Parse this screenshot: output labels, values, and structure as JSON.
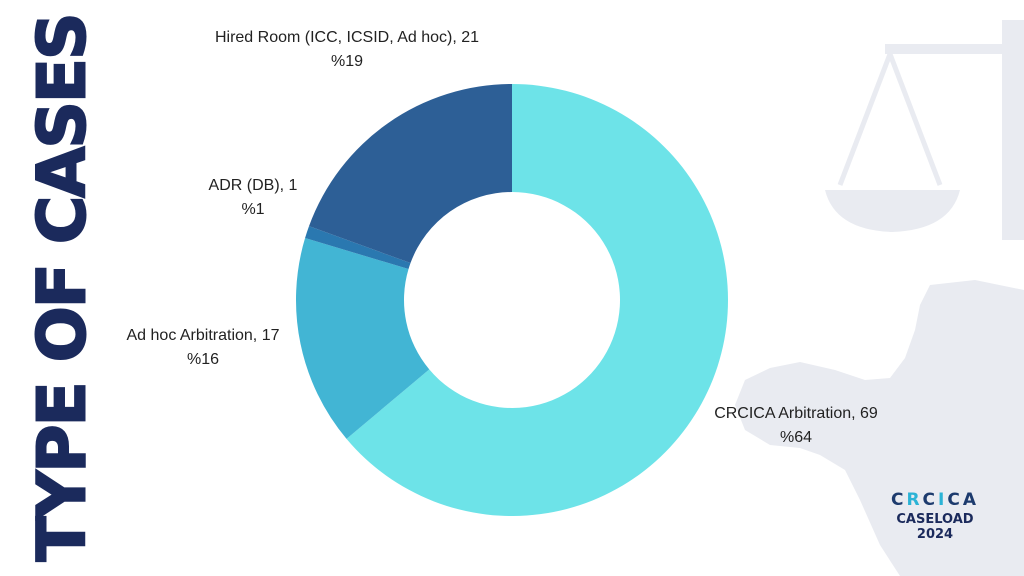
{
  "side_title": "TYPE OF CASES",
  "colors": {
    "background": "#ffffff",
    "title": "#1b2a5c",
    "decor": "#e9ebf1",
    "brand_dark": "#1d3b6e",
    "brand_light": "#2bb3d6"
  },
  "brand": {
    "logo_parts": [
      "C",
      "R",
      "C",
      "I",
      "C",
      "A"
    ],
    "line1": "CASELOAD",
    "line2": "2024"
  },
  "decor_icons": [
    "scales-of-justice-icon",
    "africa-map-icon"
  ],
  "chart_data": {
    "type": "pie",
    "donut": true,
    "title": "",
    "slices": [
      {
        "label": "CRCICA Arbitration, 69",
        "value": 69,
        "percent": "%64",
        "color": "#6de3e8"
      },
      {
        "label": "Ad hoc Arbitration, 17",
        "value": 17,
        "percent": "%16",
        "color": "#42b5d4"
      },
      {
        "label": "ADR (DB), 1",
        "value": 1,
        "percent": "%1",
        "color": "#2a78b0"
      },
      {
        "label": "Hired Room (ICC, ICSID, Ad hoc), 21",
        "value": 21,
        "percent": "%19",
        "color": "#2d5f96"
      }
    ]
  }
}
